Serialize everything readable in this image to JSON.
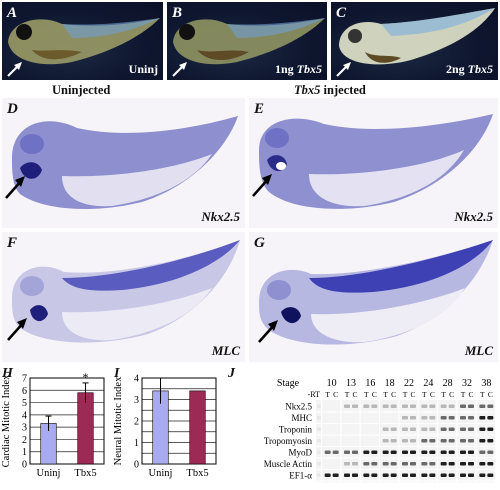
{
  "panels": {
    "A": {
      "label": "A",
      "caption": "Uninj"
    },
    "B": {
      "label": "B",
      "caption_prefix": "1ng ",
      "caption_gene": "Tbx5"
    },
    "C": {
      "label": "C",
      "caption_prefix": "2ng ",
      "caption_gene": "Tbx5"
    },
    "D": {
      "label": "D",
      "caption": "Nkx2.5"
    },
    "E": {
      "label": "E",
      "caption": "Nkx2.5"
    },
    "F": {
      "label": "F",
      "caption": "MLC"
    },
    "G": {
      "label": "G",
      "caption": "MLC"
    },
    "H": {
      "label": "H"
    },
    "I": {
      "label": "I"
    },
    "J": {
      "label": "J"
    }
  },
  "group_labels": {
    "uninjected": "Uninjected",
    "injected_gene": "Tbx5",
    "injected_suffix": " injected"
  },
  "colors": {
    "uninj_bar": "#a9abf0",
    "tbx5_bar": "#9b2a55",
    "stain_blue": "#3b3fb0"
  },
  "chart_data": [
    {
      "type": "bar",
      "panel": "H",
      "categories": [
        "Uninj",
        "Tbx5"
      ],
      "values": [
        3.3,
        5.8
      ],
      "errors": [
        0.6,
        0.8
      ],
      "ylabel": "Cardiac Mitotic Index",
      "ylim": [
        0,
        7
      ],
      "yticks": [
        0,
        1,
        2,
        3,
        4,
        5,
        6,
        7
      ],
      "annotation": "*",
      "grid": true
    },
    {
      "type": "bar",
      "panel": "I",
      "categories": [
        "Uninj",
        "Tbx5"
      ],
      "values": [
        3.4,
        3.4
      ],
      "errors": [
        0.6,
        0.0
      ],
      "ylabel": "Neural Mitotic Index",
      "ylim": [
        0,
        4
      ],
      "yticks": [
        0,
        0.5,
        1,
        1.5,
        2,
        2.5,
        3,
        3.5,
        4
      ],
      "ytick_labels": [
        "0",
        "",
        "1",
        "",
        "2",
        "",
        "3",
        "",
        "4"
      ],
      "grid": true
    }
  ],
  "gel": {
    "stage_label": "Stage",
    "stages": [
      "10",
      "13",
      "16",
      "18",
      "22",
      "24",
      "28",
      "32",
      "38"
    ],
    "rt_label": "-RT",
    "lane_labels": [
      "T",
      "C"
    ],
    "genes": [
      "Nkx2.5",
      "MHC",
      "Troponin",
      "Tropomyosin",
      "MyoD",
      "Muscle Actin",
      "EF1-α"
    ]
  }
}
